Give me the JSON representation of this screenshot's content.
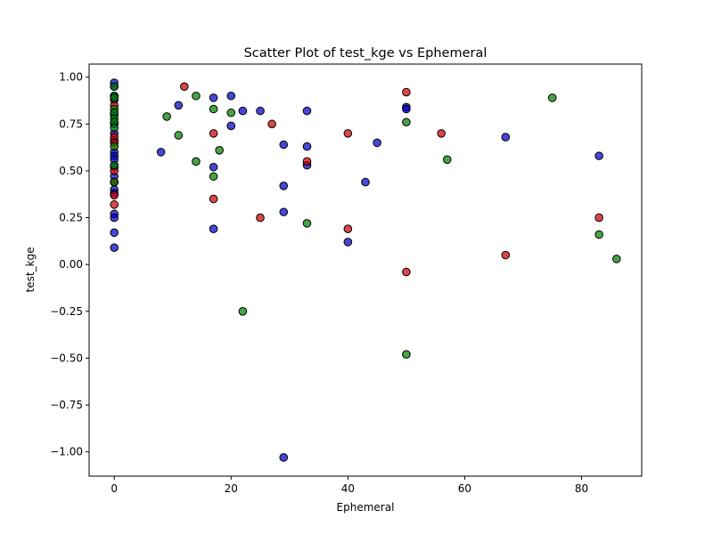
{
  "chart_data": {
    "type": "scatter",
    "title": "Scatter Plot of test_kge vs Ephemeral",
    "xlabel": "Ephemeral",
    "ylabel": "test_kge",
    "xlim": [
      -4.3,
      90.3
    ],
    "ylim": [
      -1.13,
      1.07
    ],
    "xticks": [
      0,
      20,
      40,
      60,
      80
    ],
    "yticks": [
      -1.0,
      -0.75,
      -0.5,
      -0.25,
      0.0,
      0.25,
      0.5,
      0.75,
      1.0
    ],
    "ytick_labels": [
      "−1.00",
      "−0.75",
      "−0.50",
      "−0.25",
      "0.00",
      "0.25",
      "0.50",
      "0.75",
      "1.00"
    ],
    "grid": false,
    "series": [
      {
        "color": "#0000cc",
        "points": [
          [
            0,
            0.97
          ],
          [
            0,
            0.95
          ],
          [
            0,
            0.9
          ],
          [
            0,
            0.88
          ],
          [
            0,
            0.8
          ],
          [
            0,
            0.75
          ],
          [
            0,
            0.7
          ],
          [
            0,
            0.66
          ],
          [
            0,
            0.6
          ],
          [
            0,
            0.58
          ],
          [
            0,
            0.56
          ],
          [
            0,
            0.52
          ],
          [
            0,
            0.47
          ],
          [
            0,
            0.44
          ],
          [
            0,
            0.4
          ],
          [
            0,
            0.38
          ],
          [
            0,
            0.27
          ],
          [
            0,
            0.25
          ],
          [
            0,
            0.17
          ],
          [
            0,
            0.09
          ],
          [
            8,
            0.6
          ],
          [
            11,
            0.85
          ],
          [
            17,
            0.89
          ],
          [
            17,
            0.52
          ],
          [
            17,
            0.19
          ],
          [
            20,
            0.9
          ],
          [
            20,
            0.74
          ],
          [
            22,
            0.82
          ],
          [
            25,
            0.82
          ],
          [
            29,
            0.64
          ],
          [
            29,
            0.42
          ],
          [
            29,
            0.28
          ],
          [
            29,
            -1.03
          ],
          [
            33,
            0.82
          ],
          [
            33,
            0.63
          ],
          [
            33,
            0.53
          ],
          [
            40,
            0.12
          ],
          [
            43,
            0.44
          ],
          [
            45,
            0.65
          ],
          [
            50,
            0.84
          ],
          [
            50,
            0.83
          ],
          [
            67,
            0.68
          ],
          [
            83,
            0.58
          ]
        ]
      },
      {
        "color": "#cc0000",
        "points": [
          [
            0,
            0.85
          ],
          [
            0,
            0.68
          ],
          [
            0,
            0.65
          ],
          [
            0,
            0.5
          ],
          [
            0,
            0.44
          ],
          [
            0,
            0.37
          ],
          [
            0,
            0.32
          ],
          [
            12,
            0.95
          ],
          [
            17,
            0.7
          ],
          [
            17,
            0.35
          ],
          [
            25,
            0.25
          ],
          [
            27,
            0.75
          ],
          [
            33,
            0.55
          ],
          [
            40,
            0.7
          ],
          [
            40,
            0.19
          ],
          [
            50,
            0.92
          ],
          [
            50,
            -0.04
          ],
          [
            56,
            0.7
          ],
          [
            67,
            0.05
          ],
          [
            83,
            0.25
          ]
        ]
      },
      {
        "color": "#008000",
        "points": [
          [
            0,
            0.95
          ],
          [
            0,
            0.9
          ],
          [
            0,
            0.89
          ],
          [
            0,
            0.83
          ],
          [
            0,
            0.81
          ],
          [
            0,
            0.78
          ],
          [
            0,
            0.76
          ],
          [
            0,
            0.73
          ],
          [
            0,
            0.63
          ],
          [
            0,
            0.53
          ],
          [
            0,
            0.44
          ],
          [
            9,
            0.79
          ],
          [
            11,
            0.69
          ],
          [
            14,
            0.9
          ],
          [
            14,
            0.55
          ],
          [
            17,
            0.83
          ],
          [
            17,
            0.47
          ],
          [
            18,
            0.61
          ],
          [
            20,
            0.81
          ],
          [
            22,
            -0.25
          ],
          [
            33,
            0.22
          ],
          [
            50,
            0.76
          ],
          [
            50,
            -0.48
          ],
          [
            57,
            0.56
          ],
          [
            75,
            0.89
          ],
          [
            83,
            0.16
          ],
          [
            86,
            0.03
          ]
        ]
      }
    ]
  }
}
